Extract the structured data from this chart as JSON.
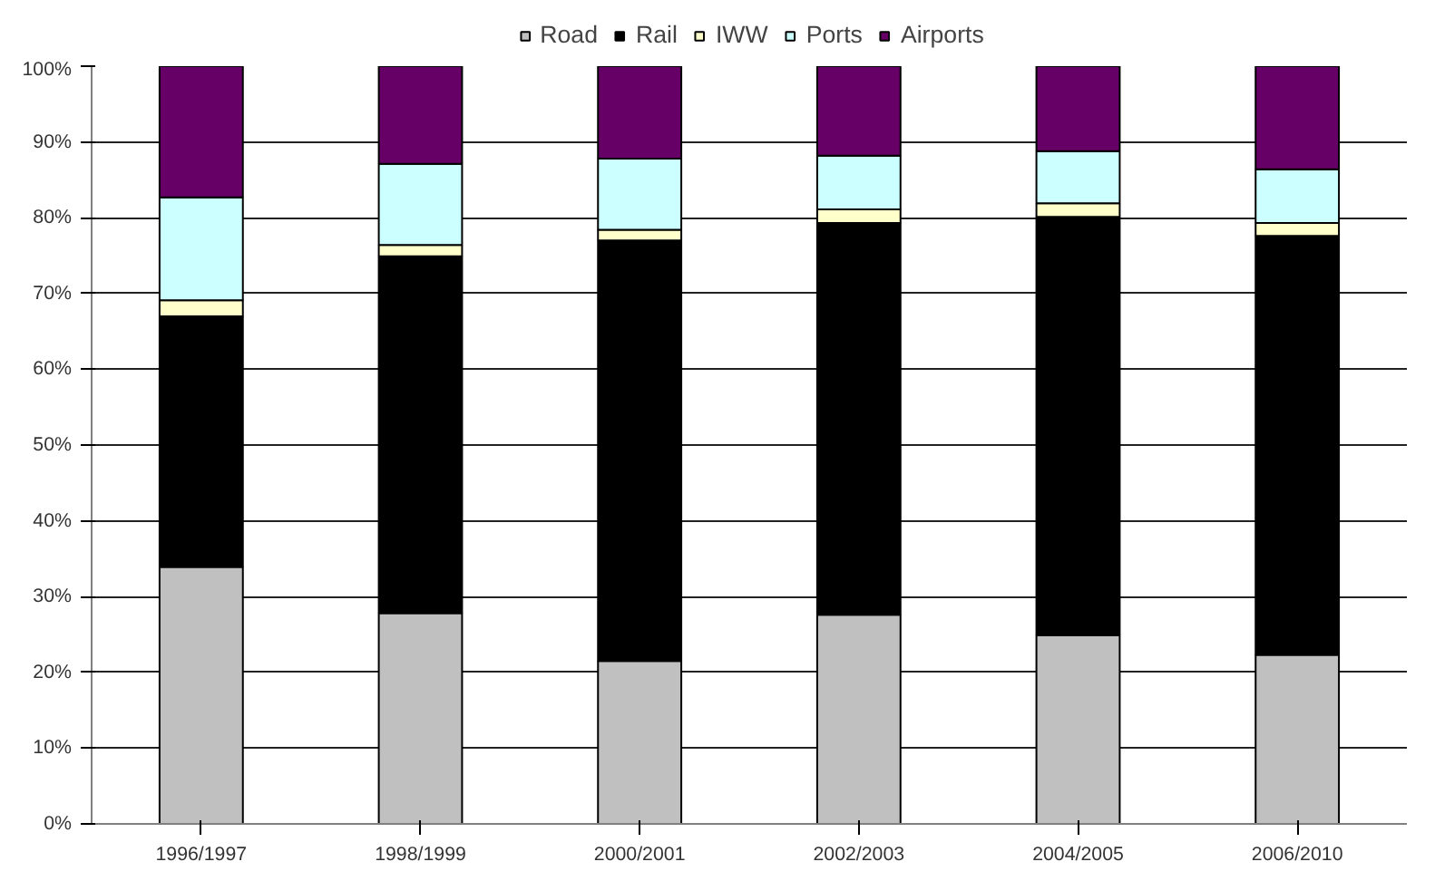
{
  "chart_data": {
    "type": "bar",
    "stacked": true,
    "categories": [
      "1996/1997",
      "1998/1999",
      "2000/2001",
      "2002/2003",
      "2004/2005",
      "2006/2010"
    ],
    "series": [
      {
        "name": "Road",
        "color": "#c0c0c0",
        "values": [
          33.9,
          27.8,
          21.5,
          27.6,
          24.9,
          22.3
        ]
      },
      {
        "name": "Rail",
        "color": "#000000",
        "values": [
          33.1,
          47.1,
          55.5,
          51.7,
          55.2,
          55.3
        ]
      },
      {
        "name": "IWW",
        "color": "#ffffcc",
        "values": [
          2.1,
          1.5,
          1.4,
          1.8,
          1.8,
          1.7
        ]
      },
      {
        "name": "Ports",
        "color": "#ccffff",
        "values": [
          13.6,
          10.7,
          9.4,
          7.1,
          6.9,
          7.1
        ]
      },
      {
        "name": "Airports",
        "color": "#660066",
        "values": [
          17.3,
          12.9,
          12.2,
          11.8,
          11.2,
          13.6
        ]
      }
    ],
    "ylim": [
      0,
      100
    ],
    "yticks": [
      {
        "value": 0,
        "label": "0%"
      },
      {
        "value": 10,
        "label": "10%"
      },
      {
        "value": 20,
        "label": "20%"
      },
      {
        "value": 30,
        "label": "30%"
      },
      {
        "value": 40,
        "label": "40%"
      },
      {
        "value": 50,
        "label": "50%"
      },
      {
        "value": 60,
        "label": "60%"
      },
      {
        "value": 70,
        "label": "70%"
      },
      {
        "value": 80,
        "label": "80%"
      },
      {
        "value": 90,
        "label": "90%"
      },
      {
        "value": 100,
        "label": "100%"
      }
    ],
    "grid": "y",
    "legend": "top"
  }
}
